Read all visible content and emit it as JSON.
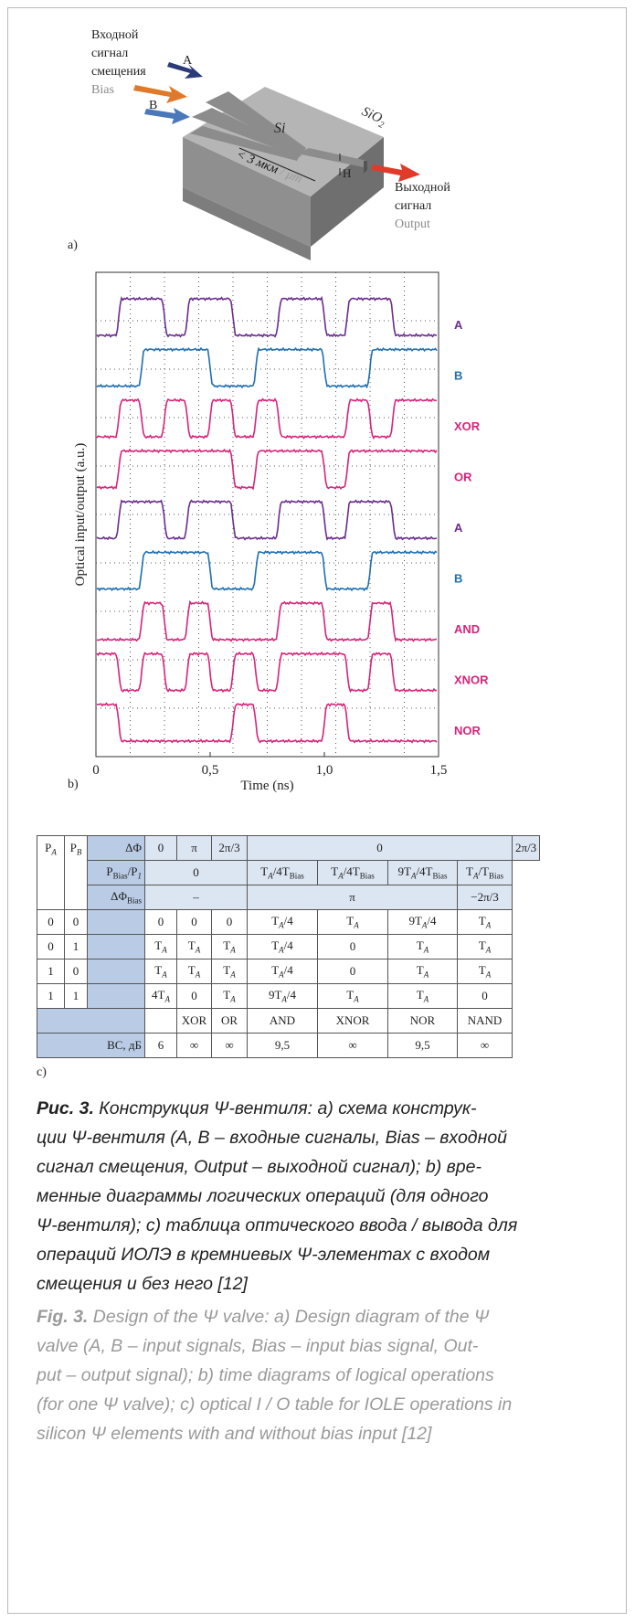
{
  "figure_a": {
    "input_label": [
      "Входной",
      "сигнал",
      "смещения"
    ],
    "bias": "Bias",
    "a": "A",
    "b": "B",
    "si": "Si",
    "sio2": [
      "SiO",
      "2"
    ],
    "width": "< 3 мкм",
    "width_en": "/ μm",
    "h": "H",
    "output_label": [
      "Выходной",
      "сигнал"
    ],
    "output_en": "Output"
  },
  "panel_labels": [
    "a)",
    "b)",
    "c)"
  ],
  "chart_data": {
    "type": "line",
    "x_label": "Time (ns)",
    "y_label": "Optical input/output (a.u.)",
    "xlim": [
      0,
      1.5
    ],
    "xticks": [
      0,
      {
        "value": 0.5,
        "label": "0,5"
      },
      {
        "value": 1.0,
        "label": "1,0"
      },
      {
        "value": 1.5,
        "label": "1,5"
      }
    ],
    "grid": true,
    "series": [
      {
        "name": "A",
        "color": "#6b2d8f"
      },
      {
        "name": "B",
        "color": "#1f6fb0"
      },
      {
        "name": "XOR",
        "color": "#d6247a"
      },
      {
        "name": "OR",
        "color": "#d6247a"
      },
      {
        "name": "A",
        "color": "#6b2d8f"
      },
      {
        "name": "B",
        "color": "#1f6fb0"
      },
      {
        "name": "AND",
        "color": "#d6247a"
      },
      {
        "name": "XNOR",
        "color": "#d6247a"
      },
      {
        "name": "NOR",
        "color": "#d6247a"
      }
    ]
  },
  "table": {
    "rows": [
      [
        [
          "P",
          "A"
        ],
        [
          "P",
          "B"
        ],
        [
          "ΔΦ"
        ],
        [
          "0"
        ],
        [
          "π"
        ],
        [
          "2π/3"
        ],
        [
          "0"
        ],
        [
          "2π/3"
        ]
      ],
      [
        [
          "P",
          "Bias",
          "/P",
          "1"
        ],
        [
          "0"
        ],
        [
          "T",
          "A",
          "/4T",
          "Bias"
        ],
        [
          "T",
          "A",
          "/4T",
          "Bias"
        ],
        [
          "9T",
          "A",
          "/4T",
          "Bias"
        ],
        [
          "T",
          "A",
          "/T",
          "Bias"
        ]
      ],
      [
        [
          "ΔΦ",
          "Bias"
        ],
        [
          "–"
        ],
        [
          "π"
        ],
        [
          "−2π/3"
        ]
      ],
      [
        [
          "0"
        ],
        [
          "0"
        ],
        [
          "0"
        ],
        [
          "0"
        ],
        [
          "0"
        ],
        [
          "T",
          "A",
          "/4"
        ],
        [
          "T",
          "A"
        ],
        [
          "9T",
          "A",
          "/4"
        ],
        [
          "T",
          "A"
        ]
      ],
      [
        [
          "0"
        ],
        [
          "1"
        ],
        [
          "T",
          "A"
        ],
        [
          "T",
          "A"
        ],
        [
          "T",
          "A"
        ],
        [
          "T",
          "A",
          "/4"
        ],
        [
          "0"
        ],
        [
          "T",
          "A"
        ],
        [
          "T",
          "A"
        ]
      ],
      [
        [
          "1"
        ],
        [
          "0"
        ],
        [
          "T",
          "A"
        ],
        [
          "T",
          "A"
        ],
        [
          "T",
          "A"
        ],
        [
          "T",
          "A",
          "/4"
        ],
        [
          "0"
        ],
        [
          "T",
          "A"
        ],
        [
          "T",
          "A"
        ]
      ],
      [
        [
          "1"
        ],
        [
          "1"
        ],
        [
          "4T",
          "A"
        ],
        [
          "0"
        ],
        [
          "T",
          "A"
        ],
        [
          "9T",
          "A",
          "/4"
        ],
        [
          "T",
          "A"
        ],
        [
          "T",
          "A"
        ],
        [
          "0"
        ]
      ],
      [
        [
          "XOR"
        ],
        [
          "OR"
        ],
        [
          "AND"
        ],
        [
          "XNOR"
        ],
        [
          "NOR"
        ],
        [
          "NAND"
        ]
      ],
      [
        [
          "ВС, дБ"
        ],
        [
          "6"
        ],
        [
          "∞"
        ],
        [
          "∞"
        ],
        [
          "9,5"
        ],
        [
          "∞"
        ],
        [
          "9,5"
        ],
        [
          "∞"
        ]
      ]
    ]
  },
  "caption": {
    "ru": {
      "label": "Рис. 3.",
      "lines": [
        "Конструкция Ψ-вентиля: a) схема конструк-",
        "ции Ψ-вентиля (A, B – входные сигналы, Bias – входной",
        "сигнал смещения, Output – выходной сигнал); b) вре-",
        "менные диаграммы логических операций (для одного",
        "Ψ-вентиля); c) таблица оптического ввода / вывода для",
        "операций ИОЛЭ в кремниевых Ψ-элементах с входом",
        "смещения и без него [12]"
      ]
    },
    "en": {
      "label": "Fig. 3.",
      "lines": [
        "Design of the Ψ valve: a) Design diagram of the Ψ",
        "valve (A, B – input signals, Bias – input bias signal, Out-",
        "put – output signal); b) time diagrams of logical operations",
        "(for one Ψ valve); c) optical I / O table for IOLE operations in",
        "silicon Ψ elements with and without bias input [12]"
      ]
    }
  }
}
